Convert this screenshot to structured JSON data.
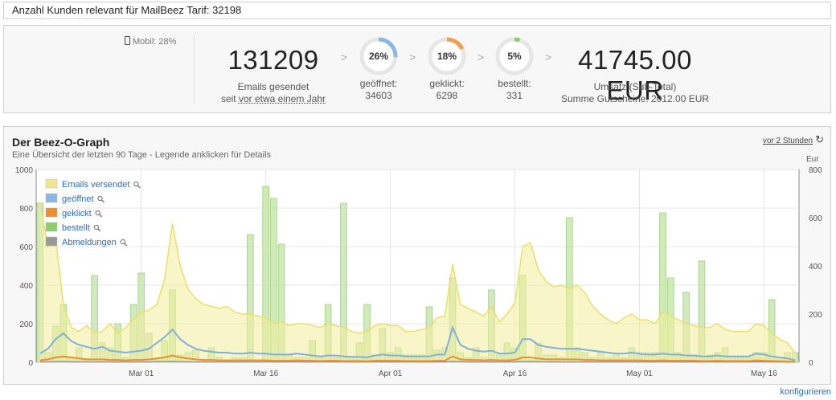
{
  "topbar": {
    "text": "Anzahl Kunden relevant für MailBeez Tarif: 32198"
  },
  "stats": {
    "mobil": "Mobil: 28%",
    "emails": {
      "value": "131209",
      "label": "Emails gesendet",
      "since_prefix": "seit",
      "since_link": "vor etwa einem Jahr"
    },
    "arrow": ">",
    "rings": [
      {
        "pct": "26%",
        "label": "geöffnet:",
        "count": "34603",
        "fraction": 0.26,
        "color": "#8ab8e0"
      },
      {
        "pct": "18%",
        "label": "geklickt:",
        "count": "6298",
        "fraction": 0.18,
        "color": "#f0a050"
      },
      {
        "pct": "5%",
        "label": "bestellt:",
        "count": "331",
        "fraction": 0.05,
        "color": "#8ccf6a"
      }
    ],
    "revenue": {
      "value": "41745.00 EUR",
      "label": "Umsatz (Sub-Total)",
      "coupons": "Summe Gutscheine: 2012.00 EUR"
    }
  },
  "graph": {
    "title": "Der Beez-O-Graph",
    "subtitle": "Eine Übersicht der letzten 90 Tage - Legende anklicken für Details",
    "refresh_link": "vor 2 Stunden",
    "refresh_icon": "refresh-icon",
    "magnifier_icon": "magnifier-icon",
    "right_axis_label": "Eur",
    "configure": "konfigurieren"
  },
  "chart_data": {
    "type": "bar",
    "x_ticks": [
      "Mar 01",
      "Mar 16",
      "Apr 01",
      "Apr 16",
      "May 01",
      "May 16"
    ],
    "y_left_ticks": [
      "0",
      "200",
      "400",
      "600",
      "800",
      "1000"
    ],
    "y_right_ticks": [
      "0",
      "200",
      "400",
      "600",
      "800"
    ],
    "ylim_left": [
      0,
      1000
    ],
    "ylim_right": [
      0,
      800
    ],
    "legend": [
      {
        "name": "Emails versendet",
        "color": "#f0e68c"
      },
      {
        "name": "geöffnet",
        "color": "#8ab8e0"
      },
      {
        "name": "geklickt",
        "color": "#f08c2a"
      },
      {
        "name": "bestellt",
        "color": "#8ccf6a"
      },
      {
        "name": "Abmeldungen",
        "color": "#999999"
      }
    ],
    "legend_position": "top-left",
    "emails": [
      830,
      600,
      640,
      300,
      180,
      160,
      190,
      150,
      160,
      200,
      150,
      180,
      220,
      260,
      270,
      300,
      430,
      720,
      500,
      380,
      330,
      300,
      290,
      280,
      290,
      260,
      250,
      250,
      240,
      230,
      200,
      210,
      190,
      200,
      200,
      190,
      180,
      200,
      190,
      180,
      160,
      150,
      160,
      190,
      200,
      190,
      190,
      160,
      160,
      170,
      180,
      230,
      240,
      510,
      300,
      280,
      260,
      240,
      290,
      210,
      250,
      310,
      600,
      620,
      480,
      420,
      390,
      400,
      380,
      400,
      360,
      290,
      250,
      220,
      200,
      230,
      250,
      220,
      220,
      200,
      260,
      240,
      220,
      200,
      190,
      180,
      180,
      200,
      170,
      160,
      160,
      160,
      200,
      190,
      150,
      120,
      100,
      50
    ],
    "opened": [
      45,
      70,
      120,
      150,
      110,
      90,
      80,
      70,
      80,
      60,
      55,
      50,
      55,
      60,
      70,
      100,
      130,
      170,
      120,
      90,
      70,
      60,
      55,
      50,
      50,
      45,
      45,
      50,
      45,
      45,
      40,
      40,
      40,
      45,
      40,
      35,
      30,
      35,
      35,
      30,
      28,
      28,
      25,
      35,
      40,
      35,
      35,
      30,
      30,
      30,
      30,
      40,
      40,
      180,
      90,
      70,
      60,
      55,
      60,
      45,
      45,
      50,
      120,
      120,
      90,
      80,
      75,
      70,
      70,
      70,
      65,
      60,
      55,
      50,
      45,
      45,
      50,
      45,
      40,
      40,
      45,
      40,
      40,
      35,
      35,
      30,
      30,
      35,
      30,
      30,
      30,
      30,
      45,
      40,
      30,
      25,
      20,
      10
    ],
    "clicked": [
      10,
      15,
      25,
      30,
      25,
      20,
      15,
      15,
      15,
      12,
      12,
      10,
      12,
      12,
      15,
      20,
      25,
      35,
      25,
      20,
      15,
      12,
      12,
      10,
      10,
      10,
      10,
      10,
      10,
      10,
      8,
      8,
      8,
      10,
      8,
      8,
      6,
      8,
      8,
      6,
      6,
      6,
      5,
      8,
      8,
      8,
      8,
      6,
      6,
      6,
      6,
      8,
      8,
      30,
      15,
      12,
      12,
      10,
      12,
      10,
      10,
      12,
      25,
      25,
      20,
      15,
      15,
      15,
      15,
      15,
      12,
      12,
      10,
      10,
      10,
      10,
      10,
      10,
      8,
      8,
      10,
      8,
      8,
      8,
      8,
      6,
      6,
      8,
      6,
      6,
      6,
      6,
      10,
      8,
      6,
      5,
      4,
      2
    ],
    "ordered_eur": [
      660,
      40,
      150,
      240,
      20,
      60,
      10,
      360,
      80,
      60,
      160,
      20,
      240,
      370,
      120,
      10,
      90,
      300,
      30,
      40,
      50,
      10,
      60,
      20,
      10,
      20,
      20,
      530,
      10,
      730,
      680,
      490,
      30,
      20,
      20,
      90,
      20,
      240,
      20,
      660,
      20,
      80,
      240,
      30,
      140,
      40,
      60,
      30,
      30,
      30,
      230,
      50,
      60,
      350,
      40,
      20,
      60,
      20,
      300,
      30,
      80,
      60,
      360,
      10,
      80,
      30,
      30,
      20,
      600,
      60,
      40,
      20,
      40,
      20,
      30,
      20,
      60,
      30,
      40,
      40,
      620,
      350,
      40,
      290,
      30,
      420,
      30,
      40,
      60,
      20,
      20,
      20,
      40,
      40,
      260,
      20,
      40,
      40
    ],
    "unsub": [
      2,
      2,
      3,
      3,
      2,
      2,
      2,
      2,
      2,
      2,
      2,
      2,
      2,
      2,
      2,
      3,
      3,
      4,
      3,
      2,
      2,
      2,
      2,
      2,
      2,
      2,
      2,
      2,
      2,
      2,
      2,
      2,
      2,
      2,
      2,
      2,
      2,
      2,
      2,
      2,
      2,
      2,
      2,
      2,
      2,
      2,
      2,
      2,
      2,
      2,
      2,
      2,
      2,
      4,
      3,
      2,
      2,
      2,
      2,
      2,
      2,
      2,
      3,
      3,
      3,
      2,
      2,
      2,
      2,
      2,
      2,
      2,
      2,
      2,
      2,
      2,
      2,
      2,
      2,
      2,
      2,
      2,
      2,
      2,
      2,
      2,
      2,
      2,
      2,
      2,
      2,
      2,
      2,
      2,
      2,
      2,
      2,
      1
    ]
  }
}
